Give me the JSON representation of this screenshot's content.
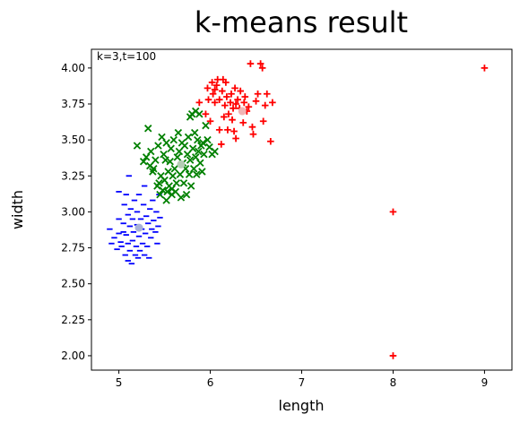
{
  "chart_data": {
    "type": "scatter",
    "title": "k-means result",
    "xlabel": "length",
    "ylabel": "width",
    "annotation": "k=3,t=100",
    "xlim": [
      4.7,
      9.3
    ],
    "ylim": [
      1.9,
      4.13
    ],
    "xticks": [
      5,
      6,
      7,
      8,
      9
    ],
    "xtick_labels": [
      "5",
      "6",
      "7",
      "8",
      "9"
    ],
    "yticks": [
      2.0,
      2.25,
      2.5,
      2.75,
      3.0,
      3.25,
      3.5,
      3.75,
      4.0
    ],
    "ytick_labels": [
      "2.00",
      "2.25",
      "2.50",
      "2.75",
      "3.00",
      "3.25",
      "3.50",
      "3.75",
      "4.00"
    ],
    "grid": false,
    "series": [
      {
        "marker": "minus",
        "color": "#0000ff",
        "points": [
          [
            4.9,
            2.88
          ],
          [
            4.92,
            2.78
          ],
          [
            4.95,
            2.82
          ],
          [
            4.98,
            2.74
          ],
          [
            5.0,
            2.95
          ],
          [
            5.0,
            2.85
          ],
          [
            5.0,
            3.14
          ],
          [
            5.02,
            2.79
          ],
          [
            5.03,
            2.76
          ],
          [
            5.05,
            2.86
          ],
          [
            5.05,
            2.92
          ],
          [
            5.06,
            3.05
          ],
          [
            5.07,
            2.7
          ],
          [
            5.08,
            2.84
          ],
          [
            5.08,
            3.12
          ],
          [
            5.1,
            2.66
          ],
          [
            5.1,
            2.78
          ],
          [
            5.1,
            2.98
          ],
          [
            5.11,
            3.25
          ],
          [
            5.12,
            2.73
          ],
          [
            5.12,
            2.9
          ],
          [
            5.13,
            3.02
          ],
          [
            5.14,
            2.64
          ],
          [
            5.15,
            2.8
          ],
          [
            5.15,
            2.95
          ],
          [
            5.16,
            2.86
          ],
          [
            5.17,
            3.08
          ],
          [
            5.18,
            2.7
          ],
          [
            5.19,
            2.76
          ],
          [
            5.2,
            2.91
          ],
          [
            5.2,
            3.0
          ],
          [
            5.21,
            2.68
          ],
          [
            5.22,
            2.83
          ],
          [
            5.22,
            3.12
          ],
          [
            5.23,
            2.73
          ],
          [
            5.24,
            2.95
          ],
          [
            5.25,
            2.88
          ],
          [
            5.26,
            2.78
          ],
          [
            5.27,
            3.05
          ],
          [
            5.28,
            2.7
          ],
          [
            5.28,
            3.18
          ],
          [
            5.29,
            2.85
          ],
          [
            5.3,
            2.97
          ],
          [
            5.31,
            2.76
          ],
          [
            5.32,
            2.92
          ],
          [
            5.33,
            2.68
          ],
          [
            5.34,
            3.02
          ],
          [
            5.35,
            2.82
          ],
          [
            5.36,
            2.88
          ],
          [
            5.37,
            3.08
          ],
          [
            5.38,
            2.94
          ],
          [
            5.4,
            2.86
          ],
          [
            5.41,
            3.0
          ],
          [
            5.42,
            2.78
          ],
          [
            5.43,
            2.9
          ],
          [
            5.44,
            3.12
          ],
          [
            5.45,
            2.96
          ]
        ]
      },
      {
        "marker": "x",
        "color": "#008000",
        "points": [
          [
            5.2,
            3.46
          ],
          [
            5.27,
            3.35
          ],
          [
            5.3,
            3.38
          ],
          [
            5.32,
            3.58
          ],
          [
            5.34,
            3.32
          ],
          [
            5.35,
            3.42
          ],
          [
            5.37,
            3.28
          ],
          [
            5.38,
            3.3
          ],
          [
            5.4,
            3.36
          ],
          [
            5.42,
            3.18
          ],
          [
            5.43,
            3.46
          ],
          [
            5.44,
            3.2
          ],
          [
            5.45,
            3.12
          ],
          [
            5.46,
            3.25
          ],
          [
            5.47,
            3.52
          ],
          [
            5.48,
            3.15
          ],
          [
            5.49,
            3.4
          ],
          [
            5.5,
            3.22
          ],
          [
            5.51,
            3.36
          ],
          [
            5.52,
            3.48
          ],
          [
            5.53,
            3.14
          ],
          [
            5.54,
            3.28
          ],
          [
            5.55,
            3.18
          ],
          [
            5.56,
            3.35
          ],
          [
            5.57,
            3.44
          ],
          [
            5.58,
            3.16
          ],
          [
            5.59,
            3.25
          ],
          [
            5.6,
            3.5
          ],
          [
            5.61,
            3.3
          ],
          [
            5.62,
            3.14
          ],
          [
            5.63,
            3.2
          ],
          [
            5.64,
            3.38
          ],
          [
            5.65,
            3.55
          ],
          [
            5.66,
            3.42
          ],
          [
            5.67,
            3.26
          ],
          [
            5.68,
            3.1
          ],
          [
            5.69,
            3.48
          ],
          [
            5.7,
            3.34
          ],
          [
            5.71,
            3.2
          ],
          [
            5.72,
            3.46
          ],
          [
            5.73,
            3.3
          ],
          [
            5.74,
            3.12
          ],
          [
            5.75,
            3.4
          ],
          [
            5.76,
            3.52
          ],
          [
            5.77,
            3.26
          ],
          [
            5.78,
            3.36
          ],
          [
            5.79,
            3.18
          ],
          [
            5.8,
            3.68
          ],
          [
            5.81,
            3.44
          ],
          [
            5.82,
            3.3
          ],
          [
            5.83,
            3.55
          ],
          [
            5.84,
            3.38
          ],
          [
            5.85,
            3.26
          ],
          [
            5.86,
            3.5
          ],
          [
            5.87,
            3.42
          ],
          [
            5.88,
            3.68
          ],
          [
            5.89,
            3.34
          ],
          [
            5.9,
            3.46
          ],
          [
            5.91,
            3.28
          ],
          [
            5.92,
            3.48
          ],
          [
            5.93,
            3.4
          ],
          [
            5.95,
            3.6
          ],
          [
            5.97,
            3.5
          ],
          [
            5.99,
            3.45
          ],
          [
            6.02,
            3.4
          ],
          [
            6.05,
            3.42
          ],
          [
            5.84,
            3.7
          ],
          [
            5.78,
            3.66
          ],
          [
            5.52,
            3.08
          ],
          [
            5.58,
            3.12
          ]
        ]
      },
      {
        "marker": "plus",
        "color": "#ff0000",
        "points": [
          [
            5.88,
            3.76
          ],
          [
            5.95,
            3.68
          ],
          [
            5.97,
            3.86
          ],
          [
            5.98,
            3.78
          ],
          [
            6.0,
            3.63
          ],
          [
            6.02,
            3.9
          ],
          [
            6.03,
            3.82
          ],
          [
            6.05,
            3.76
          ],
          [
            6.07,
            3.88
          ],
          [
            6.08,
            3.92
          ],
          [
            6.1,
            3.78
          ],
          [
            6.1,
            3.57
          ],
          [
            6.12,
            3.47
          ],
          [
            6.13,
            3.84
          ],
          [
            6.14,
            3.92
          ],
          [
            6.15,
            3.66
          ],
          [
            6.16,
            3.74
          ],
          [
            6.17,
            3.9
          ],
          [
            6.18,
            3.8
          ],
          [
            6.19,
            3.57
          ],
          [
            6.2,
            3.68
          ],
          [
            6.22,
            3.76
          ],
          [
            6.23,
            3.82
          ],
          [
            6.24,
            3.64
          ],
          [
            6.25,
            3.72
          ],
          [
            6.26,
            3.56
          ],
          [
            6.27,
            3.86
          ],
          [
            6.28,
            3.51
          ],
          [
            6.3,
            3.78
          ],
          [
            6.32,
            3.72
          ],
          [
            6.33,
            3.84
          ],
          [
            6.35,
            3.7
          ],
          [
            6.36,
            3.62
          ],
          [
            6.37,
            3.76
          ],
          [
            6.38,
            3.8
          ],
          [
            6.4,
            3.7
          ],
          [
            6.42,
            3.73
          ],
          [
            6.44,
            4.03
          ],
          [
            6.46,
            3.59
          ],
          [
            6.47,
            3.54
          ],
          [
            6.5,
            3.77
          ],
          [
            6.52,
            3.82
          ],
          [
            6.55,
            4.03
          ],
          [
            6.57,
            4.0
          ],
          [
            6.58,
            3.63
          ],
          [
            6.6,
            3.74
          ],
          [
            6.62,
            3.82
          ],
          [
            6.66,
            3.49
          ],
          [
            6.68,
            3.76
          ],
          [
            6.28,
            3.75
          ],
          [
            6.05,
            3.85
          ],
          [
            8.0,
            3.0
          ],
          [
            8.0,
            2.0
          ],
          [
            9.0,
            4.0
          ]
        ]
      }
    ],
    "centroids": [
      {
        "x": 5.22,
        "y": 2.89,
        "color": "#a8b2d8"
      },
      {
        "x": 5.68,
        "y": 3.33,
        "color": "#b4ccb4"
      },
      {
        "x": 6.35,
        "y": 3.7,
        "color": "#f0b4b4"
      }
    ]
  }
}
